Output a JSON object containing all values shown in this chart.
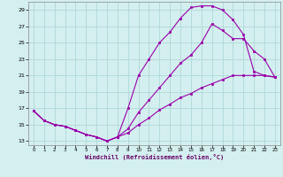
{
  "xlabel": "Windchill (Refroidissement éolien,°C)",
  "bg_color": "#d4efef",
  "grid_color": "#aed8d8",
  "line_color": "#9900aa",
  "xlim_min": -0.5,
  "xlim_max": 23.5,
  "ylim_min": 12.5,
  "ylim_max": 30.0,
  "yticks": [
    13,
    15,
    17,
    19,
    21,
    23,
    25,
    27,
    29
  ],
  "xticks": [
    0,
    1,
    2,
    3,
    4,
    5,
    6,
    7,
    8,
    9,
    10,
    11,
    12,
    13,
    14,
    15,
    16,
    17,
    18,
    19,
    20,
    21,
    22,
    23
  ],
  "line1_x": [
    0,
    1,
    2,
    3,
    4,
    5,
    6,
    7,
    8,
    9,
    10,
    11,
    12,
    13,
    14,
    15,
    16,
    17,
    18,
    19,
    20,
    21,
    22,
    23
  ],
  "line1_y": [
    16.7,
    15.5,
    15.0,
    14.8,
    14.3,
    13.8,
    13.5,
    13.0,
    13.5,
    17.0,
    21.0,
    23.0,
    25.0,
    26.3,
    28.0,
    29.3,
    29.5,
    29.5,
    29.0,
    27.8,
    26.0,
    21.5,
    21.0,
    20.8
  ],
  "line2_x": [
    0,
    1,
    2,
    3,
    4,
    5,
    6,
    7,
    8,
    9,
    10,
    11,
    12,
    13,
    14,
    15,
    16,
    17,
    18,
    19,
    20,
    21,
    22,
    23
  ],
  "line2_y": [
    16.7,
    15.5,
    15.0,
    14.8,
    14.3,
    13.8,
    13.5,
    13.0,
    13.5,
    14.5,
    16.5,
    18.0,
    19.5,
    21.0,
    22.5,
    23.5,
    25.0,
    27.3,
    26.5,
    25.5,
    25.5,
    24.0,
    23.0,
    20.8
  ],
  "line3_x": [
    0,
    1,
    2,
    3,
    4,
    5,
    6,
    7,
    8,
    9,
    10,
    11,
    12,
    13,
    14,
    15,
    16,
    17,
    18,
    19,
    20,
    21,
    22,
    23
  ],
  "line3_y": [
    16.7,
    15.5,
    15.0,
    14.8,
    14.3,
    13.8,
    13.5,
    13.0,
    13.5,
    14.0,
    15.0,
    15.8,
    16.8,
    17.5,
    18.3,
    18.8,
    19.5,
    20.0,
    20.5,
    21.0,
    21.0,
    21.0,
    21.0,
    20.8
  ]
}
